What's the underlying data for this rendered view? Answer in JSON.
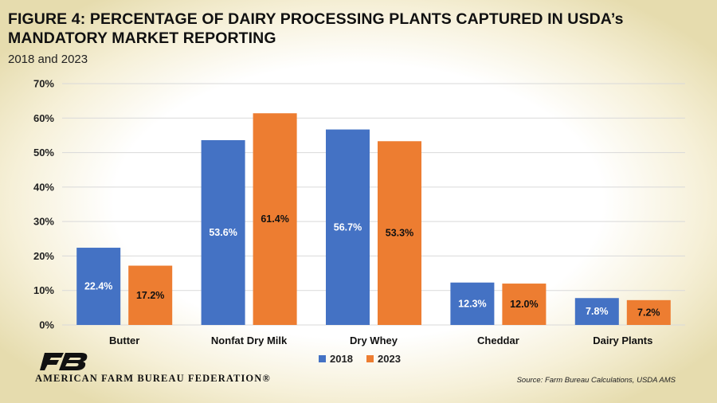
{
  "title": "FIGURE 4: PERCENTAGE OF DAIRY PROCESSING PLANTS CAPTURED IN USDA’s MANDATORY MARKET REPORTING",
  "subtitle": "2018 and 2023",
  "source": "Source: Farm Bureau Calculations, USDA AMS",
  "org_name": "AMERICAN FARM BUREAU FEDERATION®",
  "logo_icon": "farm-bureau-logo-icon",
  "colors": {
    "series_2018": "#4472C4",
    "series_2023": "#ED7D31",
    "grid": "#D9D9D9"
  },
  "chart_data": {
    "type": "bar",
    "categories": [
      "Butter",
      "Nonfat Dry Milk",
      "Dry Whey",
      "Cheddar",
      "Dairy Plants"
    ],
    "series": [
      {
        "name": "2018",
        "values": [
          22.4,
          53.6,
          56.7,
          12.3,
          7.8
        ],
        "labels": [
          "22.4%",
          "53.6%",
          "56.7%",
          "12.3%",
          "7.8%"
        ]
      },
      {
        "name": "2023",
        "values": [
          17.2,
          61.4,
          53.3,
          12.0,
          7.2
        ],
        "labels": [
          "17.2%",
          "61.4%",
          "53.3%",
          "12.0%",
          "7.2%"
        ]
      }
    ],
    "yticks": [
      "0%",
      "10%",
      "20%",
      "30%",
      "40%",
      "50%",
      "60%",
      "70%"
    ],
    "ylim": [
      0,
      70
    ],
    "ylabel": "",
    "xlabel": "",
    "grid": true,
    "legend": "bottom-center"
  }
}
